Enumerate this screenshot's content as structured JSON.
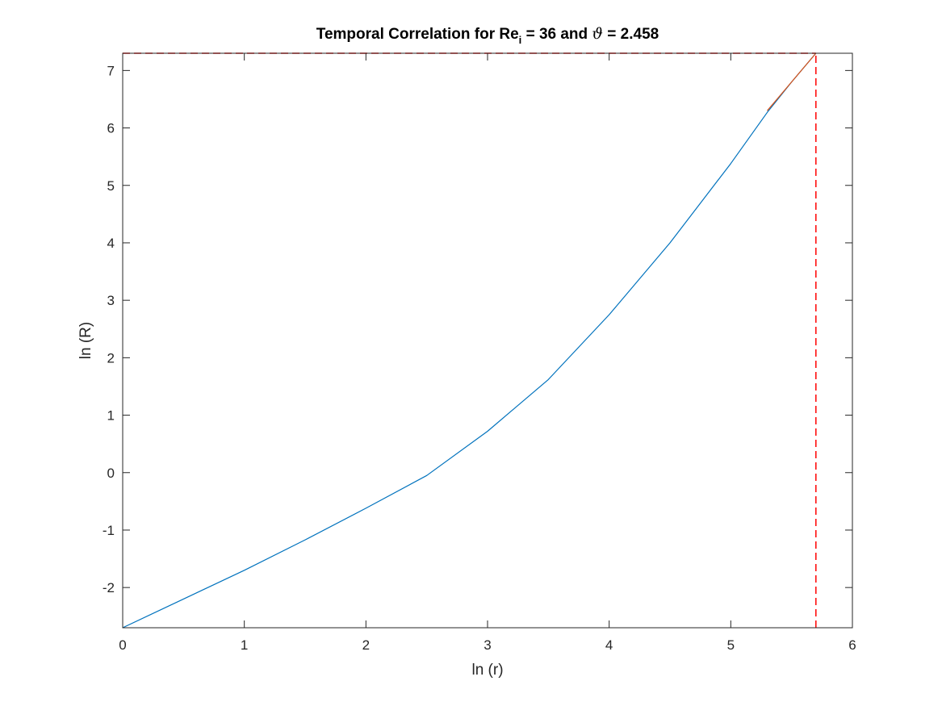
{
  "chart_data": {
    "type": "line",
    "title": {
      "prefix": "Temporal Correlation for Re",
      "subscript": "i",
      "middle": " = 36 and ",
      "symbol": "ϑ",
      "suffix": " = 2.458"
    },
    "xlabel": "ln (r)",
    "ylabel": "ln (R)",
    "xlim": [
      0,
      6
    ],
    "ylim": [
      -2.7,
      7.3
    ],
    "xticks": [
      0,
      1,
      2,
      3,
      4,
      5,
      6
    ],
    "xtick_labels": [
      "0",
      "1",
      "2",
      "3",
      "4",
      "5",
      "6"
    ],
    "yticks": [
      -2,
      -1,
      0,
      1,
      2,
      3,
      4,
      5,
      6,
      7
    ],
    "ytick_labels": [
      "-2",
      "-1",
      "0",
      "1",
      "2",
      "3",
      "4",
      "5",
      "6",
      "7"
    ],
    "grid": false,
    "legend": "none",
    "series": [
      {
        "color": "#0072bd",
        "style": "solid",
        "x": [
          0,
          0.5,
          1.0,
          1.5,
          2.0,
          2.5,
          3.0,
          3.5,
          4.0,
          4.5,
          5.0,
          5.3,
          5.5,
          5.7
        ],
        "y": [
          -2.7,
          -2.2,
          -1.7,
          -1.17,
          -0.62,
          -0.05,
          0.72,
          1.62,
          2.75,
          4.0,
          5.38,
          6.27,
          6.8,
          7.3
        ]
      },
      {
        "color": "#d95319",
        "style": "solid",
        "x": [
          5.3,
          5.7
        ],
        "y": [
          6.3,
          7.3
        ]
      }
    ],
    "reference_lines": [
      {
        "orientation": "horizontal",
        "value": 7.3,
        "from": 0,
        "to": 5.7,
        "color": "#ff0000",
        "style": "dashed"
      },
      {
        "orientation": "vertical",
        "value": 5.7,
        "from": -2.7,
        "to": 7.3,
        "color": "#ff0000",
        "style": "dashed"
      }
    ]
  }
}
